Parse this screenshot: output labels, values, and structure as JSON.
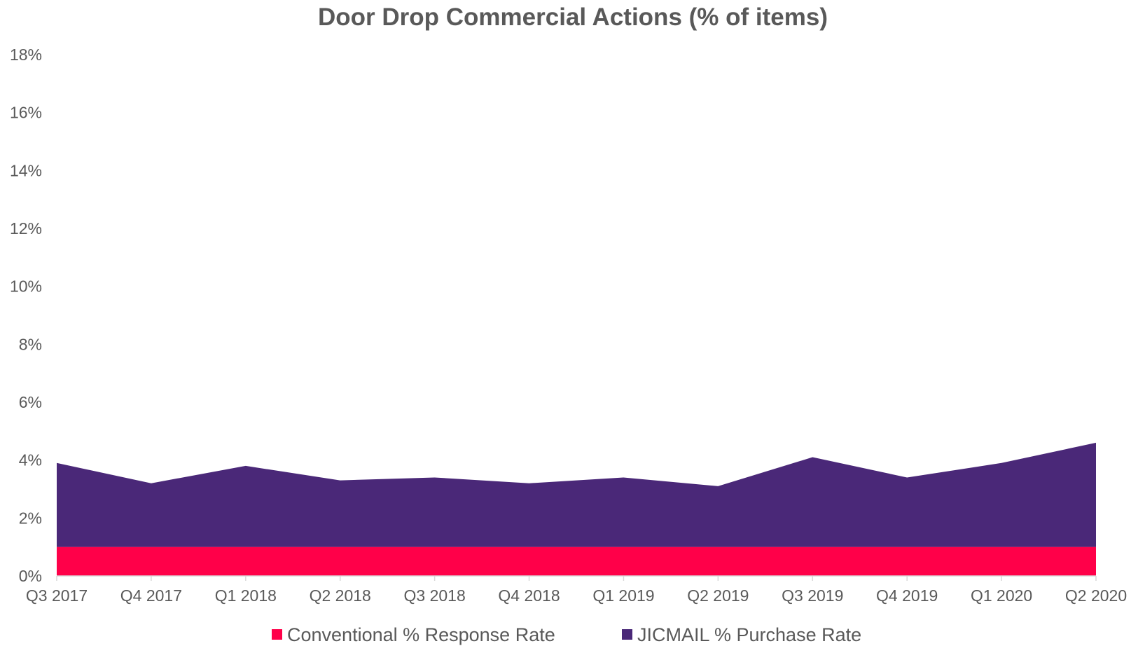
{
  "chart_data": {
    "type": "area",
    "stacked": true,
    "title": "Door Drop Commercial Actions (% of items)",
    "xlabel": "",
    "ylabel": "",
    "categories": [
      "Q3 2017",
      "Q4 2017",
      "Q1 2018",
      "Q2 2018",
      "Q3 2018",
      "Q4 2018",
      "Q1 2019",
      "Q2 2019",
      "Q3 2019",
      "Q4 2019",
      "Q1 2020",
      "Q2 2020"
    ],
    "series": [
      {
        "name": "Conventional % Response Rate",
        "color": "#FF0049",
        "values": [
          1.0,
          1.0,
          1.0,
          1.0,
          1.0,
          1.0,
          1.0,
          1.0,
          1.0,
          1.0,
          1.0,
          1.0
        ]
      },
      {
        "name": "JICMAIL % Purchase Rate",
        "color": "#4A2878",
        "values": [
          2.9,
          2.2,
          2.8,
          2.3,
          2.4,
          2.2,
          2.4,
          2.1,
          3.1,
          2.4,
          2.9,
          3.6
        ]
      }
    ],
    "ylim": [
      0,
      18
    ],
    "yticks": [
      "0%",
      "2%",
      "4%",
      "6%",
      "8%",
      "10%",
      "12%",
      "14%",
      "16%",
      "18%"
    ],
    "ytick_values": [
      0,
      2,
      4,
      6,
      8,
      10,
      12,
      14,
      16,
      18
    ],
    "grid": false,
    "legend_position": "bottom"
  }
}
